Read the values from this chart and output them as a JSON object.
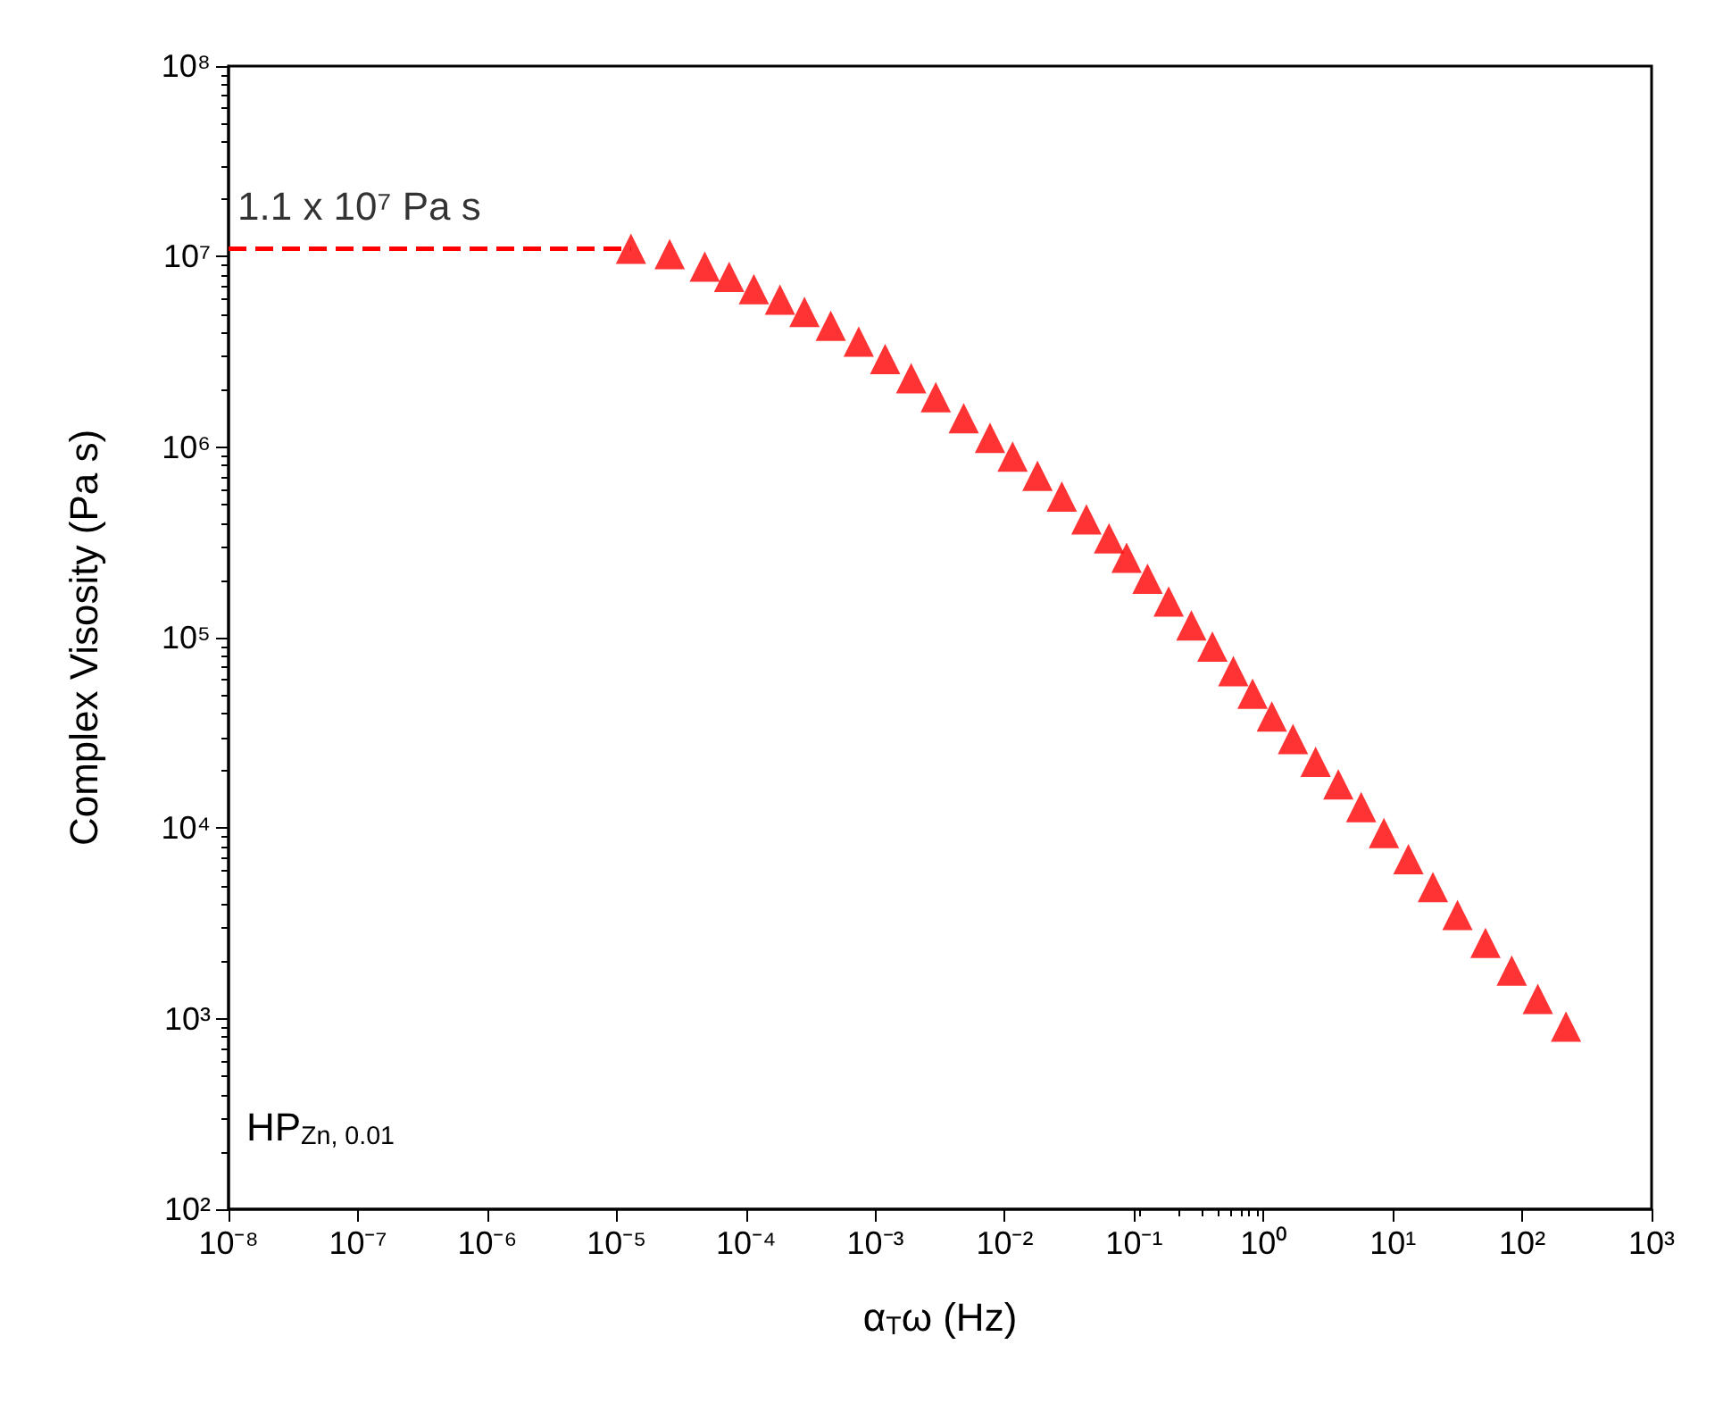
{
  "chart_data": {
    "type": "scatter",
    "xlabel": "α$_{T}$ω (Hz)",
    "ylabel": "Complex Visosity (Pa s)",
    "log": "xy",
    "grid": false,
    "xlim": [
      1e-08,
      1000
    ],
    "ylim": [
      100,
      100000000
    ],
    "xticks": [
      {
        "value": 1e-08,
        "label": "10⁻⁸"
      },
      {
        "value": 1e-07,
        "label": "10⁻⁷"
      },
      {
        "value": 1e-06,
        "label": "10⁻⁶"
      },
      {
        "value": 1e-05,
        "label": "10⁻⁵"
      },
      {
        "value": 0.0001,
        "label": "10⁻⁴"
      },
      {
        "value": 0.001,
        "label": "10⁻³"
      },
      {
        "value": 0.01,
        "label": "10⁻²"
      },
      {
        "value": 0.1,
        "label": "10⁻¹"
      },
      {
        "value": 1,
        "label": "10⁰"
      },
      {
        "value": 10,
        "label": "10¹"
      },
      {
        "value": 100,
        "label": "10²"
      },
      {
        "value": 1000,
        "label": "10³"
      }
    ],
    "yticks": [
      {
        "value": 100,
        "label": "10²"
      },
      {
        "value": 1000,
        "label": "10³"
      },
      {
        "value": 10000,
        "label": "10⁴"
      },
      {
        "value": 100000,
        "label": "10⁵"
      },
      {
        "value": 1000000,
        "label": "10⁶"
      },
      {
        "value": 10000000,
        "label": "10⁷"
      },
      {
        "value": 100000000,
        "label": "10⁸"
      }
    ],
    "annotations": [
      {
        "text": "1.1 x 10⁷ Pa s",
        "x": 1e-08,
        "y": 11000000
      },
      "HP$_{Zn, 0.01}$"
    ],
    "series": [
      {
        "type": "line",
        "color": "#ff0000",
        "line_style": "dashed",
        "marker": "none",
        "x": [
          1e-08,
          1.29e-05
        ],
        "values": [
          11000000,
          11000000
        ]
      },
      {
        "color": "#ff0000",
        "marker": "triangle",
        "x": [
          1.29e-05,
          2.57e-05,
          4.8e-05,
          7.41e-05,
          0.000115,
          0.000183,
          0.000283,
          0.000452,
          0.000743,
          0.00119,
          0.00189,
          0.00293,
          0.00482,
          0.00769,
          0.0115,
          0.0179,
          0.0276,
          0.0428,
          0.064,
          0.0875,
          0.127,
          0.185,
          0.277,
          0.403,
          0.585,
          0.824,
          1.16,
          1.69,
          2.53,
          3.79,
          5.69,
          8.53,
          13.2,
          20.4,
          31.6,
          52,
          83,
          132,
          218
        ],
        "values": [
          11000000,
          10300000,
          8870000,
          7820000,
          6750000,
          5940000,
          5130000,
          4340000,
          3580000,
          2900000,
          2300000,
          1830000,
          1420000,
          1120000,
          893000,
          708000,
          550000,
          418000,
          332000,
          263000,
          204000,
          155000,
          116000,
          89800,
          66800,
          50800,
          38600,
          29400,
          22300,
          17000,
          12900,
          9420,
          6870,
          4910,
          3500,
          2500,
          1790,
          1270,
          910
        ]
      }
    ]
  }
}
